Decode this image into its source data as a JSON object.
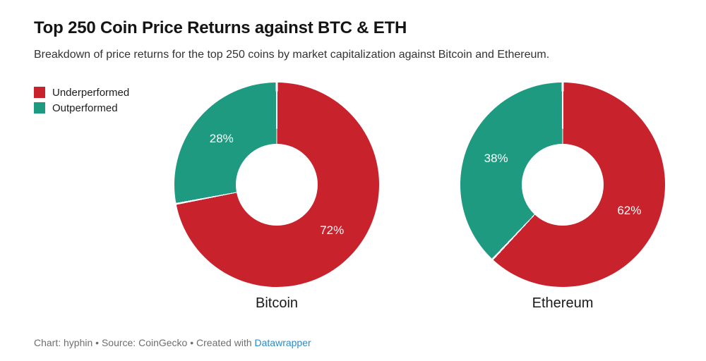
{
  "header": {
    "title": "Top 250 Coin Price Returns against BTC & ETH",
    "subtitle": "Breakdown of price returns for the top 250 coins by market capitalization against Bitcoin and Ethereum."
  },
  "legend": {
    "items": [
      {
        "label": "Underperformed",
        "color": "#c8232c"
      },
      {
        "label": "Outperformed",
        "color": "#1e9a80"
      }
    ]
  },
  "chart_data": {
    "type": "pie",
    "variant": "donut",
    "direction": "clockwise",
    "start_angle_deg": 0,
    "inner_radius_ratio": 0.4,
    "categories": [
      "Underperformed",
      "Outperformed"
    ],
    "colors": [
      "#c8232c",
      "#1e9a80"
    ],
    "slice_separator_color": "#ffffff",
    "charts": [
      {
        "name": "Bitcoin",
        "values": [
          72,
          28
        ],
        "labels": [
          "72%",
          "28%"
        ]
      },
      {
        "name": "Ethereum",
        "values": [
          62,
          38
        ],
        "labels": [
          "62%",
          "38%"
        ]
      }
    ]
  },
  "footer": {
    "credit_prefix": "Chart: hyphin • Source: CoinGecko • Created with ",
    "link_label": "Datawrapper",
    "link_color": "#2d8cc4"
  }
}
